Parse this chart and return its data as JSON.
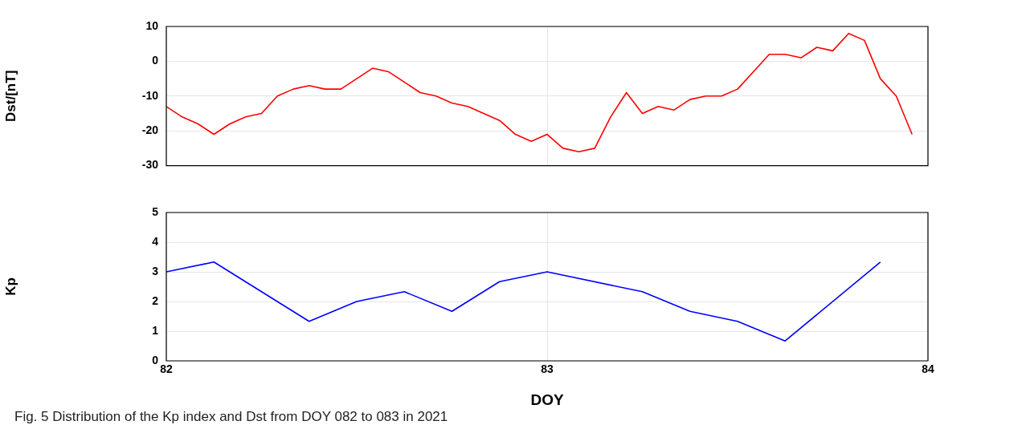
{
  "chart_data": [
    {
      "type": "line",
      "ylabel": "Dst/[nT]",
      "xlim": [
        82,
        84
      ],
      "xticks": [
        82,
        83,
        84
      ],
      "ylim": [
        -30,
        10
      ],
      "yticks": [
        -30,
        -20,
        -10,
        0,
        10
      ],
      "grid": true,
      "tick_labels": "y",
      "marker": "none",
      "series": [
        {
          "color": "#ff0000",
          "x": [
            82,
            82.0417,
            82.0833,
            82.125,
            82.1667,
            82.2083,
            82.25,
            82.2917,
            82.3333,
            82.375,
            82.4167,
            82.4583,
            82.5,
            82.5417,
            82.5833,
            82.625,
            82.6667,
            82.7083,
            82.75,
            82.7917,
            82.8333,
            82.875,
            82.9167,
            82.9583,
            83,
            83.0417,
            83.0833,
            83.125,
            83.1667,
            83.2083,
            83.25,
            83.2917,
            83.3333,
            83.375,
            83.4167,
            83.4583,
            83.5,
            83.5417,
            83.5833,
            83.625,
            83.6667,
            83.7083,
            83.75,
            83.7917,
            83.8333,
            83.875,
            83.9167,
            83.9583
          ],
          "values": [
            -13,
            -16,
            -18,
            -21,
            -18,
            -16,
            -15,
            -10,
            -8,
            -7,
            -8,
            -8,
            -5,
            -2,
            -3,
            -6,
            -9,
            -10,
            -12,
            -13,
            -15,
            -17,
            -21,
            -23,
            -21,
            -25,
            -26,
            -25,
            -16,
            -9,
            -15,
            -13,
            -14,
            -11,
            -10,
            -10,
            -8,
            -3,
            2,
            2,
            1,
            4,
            3,
            8,
            6,
            -5,
            -10,
            -21
          ]
        }
      ]
    },
    {
      "type": "line",
      "xlabel": "DOY",
      "ylabel": "Kp",
      "xlim": [
        82,
        84
      ],
      "xticks": [
        82,
        83,
        84
      ],
      "ylim": [
        0,
        5
      ],
      "yticks": [
        0,
        1,
        2,
        3,
        4,
        5
      ],
      "grid": true,
      "marker": "none",
      "annotations": [
        "Fig. 5  Distribution of the Kp index and Dst from DOY 082 to 083 in 2021"
      ],
      "series": [
        {
          "color": "#0000ff",
          "x": [
            82,
            82.125,
            82.375,
            82.5,
            82.625,
            82.75,
            82.875,
            83,
            83.25,
            83.375,
            83.5,
            83.625,
            83.875
          ],
          "values": [
            3,
            3.33,
            1.33,
            2,
            2.33,
            1.67,
            2.67,
            3,
            2.33,
            1.67,
            1.33,
            0.67,
            3.33
          ]
        }
      ]
    }
  ]
}
